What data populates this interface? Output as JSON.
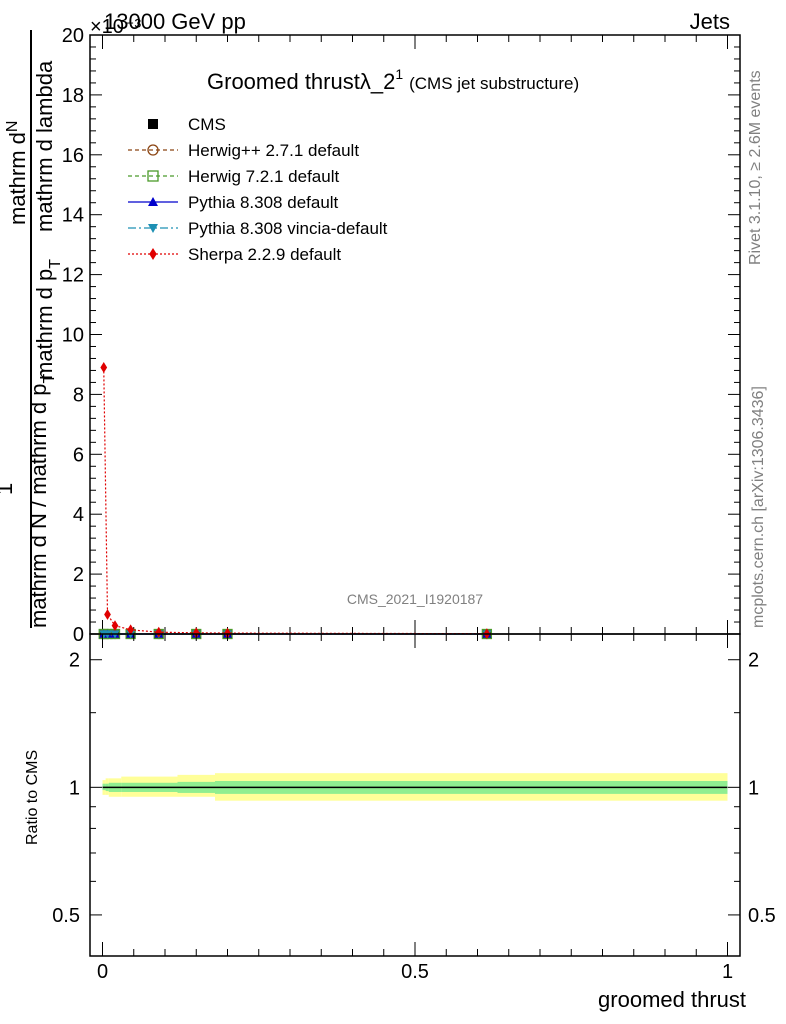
{
  "header": {
    "left": "13000 GeV pp",
    "right": "Jets",
    "exponent": "×10⁻³"
  },
  "side": {
    "rivet": "Rivet 3.1.10, ≥ 2.6M events",
    "mcplots": "mcplots.cern.ch [arXiv:1306.3436]"
  },
  "watermark": "CMS_2021_I1920187",
  "title": {
    "main": "Groomed thrustλ_2",
    "sup": "1",
    "small": "(CMS jet substructure)"
  },
  "ylabel": {
    "top_numer": "mathrm d",
    "top_N": "N",
    "top_denom": "mathrm d p",
    "top_denom_sub": "T",
    "top_denom2": " mathrm d p",
    "top_denom2_sub": "T",
    "top_denom3": " mathrm d lambda",
    "one": "1",
    "bottom": "mathrm d N / mathrm d p",
    "bottom_sub": "T"
  },
  "ratio_ylabel": "Ratio to CMS",
  "xlabel": "groomed thrust",
  "colors": {
    "cms": "#000000",
    "herwigpp": "#8B4513",
    "herwig7": "#4B9A2A",
    "pythia": "#0000CC",
    "vincia": "#1E90B4",
    "sherpa": "#E00000",
    "band_outer": "#FFFF99",
    "band_inner": "#90EE90"
  },
  "chart_data": [
    {
      "type": "line",
      "panel": "main",
      "title": "Groomed thrustλ_2^1 (CMS jet substructure)",
      "xlabel": "groomed thrust",
      "xlim": [
        -0.02,
        1.02
      ],
      "ylim": [
        0,
        20000
      ],
      "y_multiplier": "×10⁻³",
      "xticks": [
        "0",
        "0.5",
        "1"
      ],
      "yticks": [
        "0",
        "2",
        "4",
        "6",
        "8",
        "10",
        "12",
        "14",
        "16",
        "18",
        "20"
      ],
      "legend_position": "top-left",
      "series": [
        {
          "name": "CMS",
          "marker": "square-filled",
          "x": [
            0.002,
            0.008,
            0.02,
            0.045,
            0.09,
            0.15,
            0.2,
            0.615
          ],
          "y": [
            0,
            0,
            0,
            0,
            0,
            0,
            0,
            0
          ]
        },
        {
          "name": "Herwig++ 2.7.1 default",
          "marker": "circle-open",
          "x": [
            0.002,
            0.008,
            0.02,
            0.045,
            0.09,
            0.15,
            0.2,
            0.615
          ],
          "y": [
            0,
            0,
            0,
            0,
            0,
            0,
            0,
            0
          ]
        },
        {
          "name": "Herwig 7.2.1 default",
          "marker": "square-open",
          "x": [
            0.002,
            0.008,
            0.02,
            0.045,
            0.09,
            0.15,
            0.2,
            0.615
          ],
          "y": [
            0,
            0,
            0,
            0,
            0,
            0,
            0,
            0
          ]
        },
        {
          "name": "Pythia 8.308 default",
          "marker": "triangle-up",
          "x": [
            0.002,
            0.008,
            0.02,
            0.045,
            0.09,
            0.15,
            0.2,
            0.615
          ],
          "y": [
            0,
            0,
            0,
            0,
            0,
            0,
            0,
            0
          ]
        },
        {
          "name": "Pythia 8.308 vincia-default",
          "marker": "triangle-down",
          "x": [
            0.002,
            0.008,
            0.02,
            0.045,
            0.09,
            0.15,
            0.2,
            0.615
          ],
          "y": [
            0,
            0,
            0,
            0,
            0,
            0,
            0,
            0
          ]
        },
        {
          "name": "Sherpa 2.2.9 default",
          "marker": "diamond",
          "x": [
            0.002,
            0.008,
            0.02,
            0.045,
            0.09,
            0.15,
            0.2,
            0.615
          ],
          "y": [
            8900,
            650,
            280,
            140,
            60,
            40,
            30,
            10
          ]
        }
      ]
    },
    {
      "type": "area",
      "panel": "ratio",
      "ylabel": "Ratio to CMS",
      "xlabel": "groomed thrust",
      "xlim": [
        -0.02,
        1.02
      ],
      "ylim": [
        0.4,
        2.3
      ],
      "y_scale": "log",
      "yticks": [
        "0.5",
        "1",
        "2"
      ],
      "xticks": [
        "0",
        "0.5",
        "1"
      ],
      "band_edges": [
        0.0,
        0.005,
        0.01,
        0.03,
        0.06,
        0.12,
        0.18,
        0.24,
        1.0
      ],
      "outer_band": {
        "lo": [
          0.96,
          0.96,
          0.95,
          0.95,
          0.95,
          0.95,
          0.93,
          0.93
        ],
        "hi": [
          1.04,
          1.05,
          1.05,
          1.06,
          1.06,
          1.07,
          1.08,
          1.08
        ]
      },
      "inner_band": {
        "lo": [
          0.985,
          0.98,
          0.975,
          0.975,
          0.975,
          0.97,
          0.965,
          0.965
        ],
        "hi": [
          1.02,
          1.02,
          1.025,
          1.025,
          1.025,
          1.03,
          1.035,
          1.035
        ]
      },
      "series": [
        {
          "name": "CMS",
          "x": [
            0.0,
            1.0
          ],
          "y": [
            1,
            1
          ]
        }
      ]
    }
  ]
}
